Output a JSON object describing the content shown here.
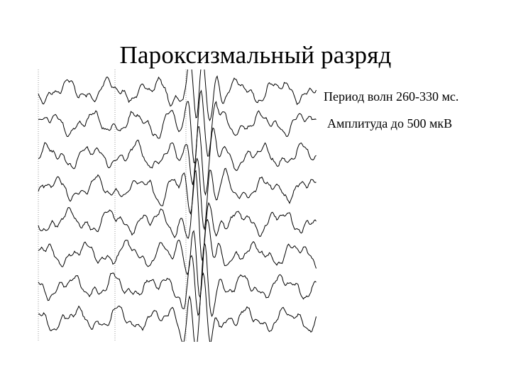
{
  "slide": {
    "title": "Пароксизмальный разряд",
    "notes": [
      "Период волн 260-330 мс.",
      "Амплитуда до 500 мкВ"
    ]
  },
  "eeg": {
    "channels": 8,
    "stroke_color": "#000000",
    "marker_color": "#9a9a9a"
  }
}
